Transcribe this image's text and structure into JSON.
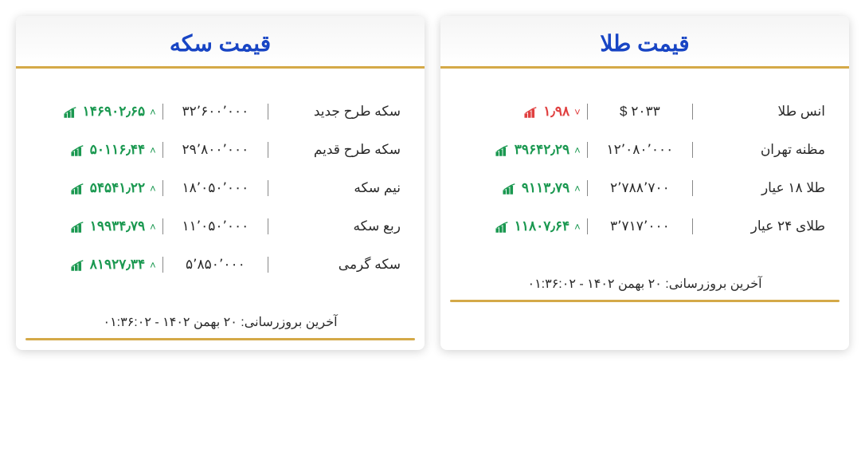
{
  "colors": {
    "title": "#1845c4",
    "accent_line": "#d4a948",
    "up": "#1a9850",
    "down": "#e04040",
    "text": "#2a2a2a",
    "divider": "#888888",
    "background": "#ffffff"
  },
  "gold_card": {
    "title": "قیمت طلا",
    "rows": [
      {
        "name": "انس طلا",
        "price": "$ ۲۰۳۳",
        "change": "۱٫۹۸",
        "direction": "down"
      },
      {
        "name": "مظنه تهران",
        "price": "۱۲٬۰۸۰٬۰۰۰",
        "change": "۳۹۶۴۲٫۲۹",
        "direction": "up"
      },
      {
        "name": "طلا ۱۸ عیار",
        "price": "۲٬۷۸۸٬۷۰۰",
        "change": "۹۱۱۳٫۷۹",
        "direction": "up"
      },
      {
        "name": "طلای ۲۴ عیار",
        "price": "۳٬۷۱۷٬۰۰۰",
        "change": "۱۱۸۰۷٫۶۴",
        "direction": "up"
      }
    ],
    "footer": "آخرین بروزرسانی: ۲۰ بهمن ۱۴۰۲ - ۰۱:۳۶:۰۲"
  },
  "coin_card": {
    "title": "قیمت سکه",
    "rows": [
      {
        "name": "سکه طرح جدید",
        "price": "۳۲٬۶۰۰٬۰۰۰",
        "change": "۱۴۶۹۰۲٫۶۵",
        "direction": "up"
      },
      {
        "name": "سکه طرح قدیم",
        "price": "۲۹٬۸۰۰٬۰۰۰",
        "change": "۵۰۱۱۶٫۴۴",
        "direction": "up"
      },
      {
        "name": "نیم سکه",
        "price": "۱۸٬۰۵۰٬۰۰۰",
        "change": "۵۴۵۴۱٫۲۲",
        "direction": "up"
      },
      {
        "name": "ربع سکه",
        "price": "۱۱٬۰۵۰٬۰۰۰",
        "change": "۱۹۹۳۴٫۷۹",
        "direction": "up"
      },
      {
        "name": "سکه گرمی",
        "price": "۵٬۸۵۰٬۰۰۰",
        "change": "۸۱۹۲۷٫۳۴",
        "direction": "up"
      }
    ],
    "footer": "آخرین بروزرسانی: ۲۰ بهمن ۱۴۰۲ - ۰۱:۳۶:۰۲"
  }
}
